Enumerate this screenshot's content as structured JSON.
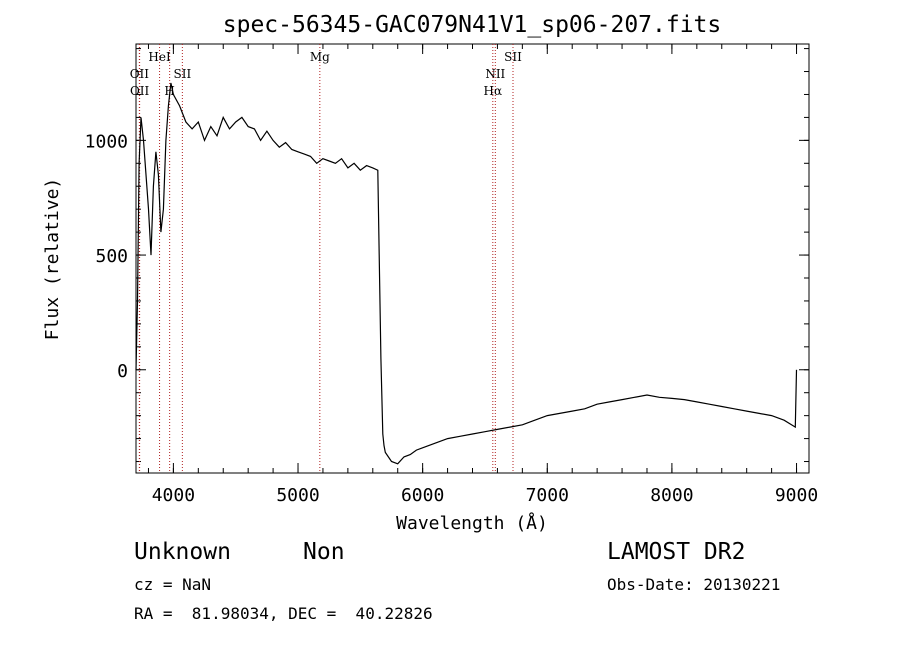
{
  "chart_data": {
    "type": "line",
    "title": "spec-56345-GAC079N41V1_sp06-207.fits",
    "xlabel": "Wavelength (Å)",
    "ylabel": "Flux (relative)",
    "xlim": [
      3700,
      9100
    ],
    "ylim": [
      -450,
      1420
    ],
    "xticks": [
      4000,
      5000,
      6000,
      7000,
      8000,
      9000
    ],
    "yticks": [
      0,
      500,
      1000
    ],
    "grid": false,
    "line_color": "#000000",
    "marker_color": "#b22222",
    "spectral_lines": [
      {
        "label": "OII",
        "wavelength": 3727,
        "row": 2
      },
      {
        "label": "OII",
        "wavelength": 3729,
        "row": 3
      },
      {
        "label": "HeI",
        "wavelength": 3889,
        "row": 1
      },
      {
        "label": "H",
        "wavelength": 3970,
        "row": 3
      },
      {
        "label": "SII",
        "wavelength": 4072,
        "row": 2
      },
      {
        "label": "Mg",
        "wavelength": 5175,
        "row": 1
      },
      {
        "label": "NII",
        "wavelength": 6583,
        "row": 2
      },
      {
        "label": "Hα",
        "wavelength": 6563,
        "row": 3
      },
      {
        "label": "SII",
        "wavelength": 6725,
        "row": 1
      }
    ],
    "series": [
      {
        "x": [
          3700,
          3712,
          3725,
          3740,
          3760,
          3780,
          3800,
          3820,
          3840,
          3860,
          3880,
          3900,
          3920,
          3940,
          3960,
          3980,
          4000,
          4050,
          4100,
          4150,
          4200,
          4250,
          4300,
          4350,
          4400,
          4450,
          4500,
          4550,
          4600,
          4650,
          4700,
          4750,
          4800,
          4850,
          4900,
          4950,
          5000,
          5050,
          5100,
          5150,
          5200,
          5250,
          5300,
          5350,
          5400,
          5450,
          5500,
          5550,
          5600,
          5640,
          5665,
          5680,
          5690,
          5700,
          5750,
          5800,
          5850,
          5900,
          5950,
          6000,
          6100,
          6200,
          6300,
          6400,
          6500,
          6600,
          6700,
          6800,
          6900,
          7000,
          7100,
          7200,
          7300,
          7400,
          7500,
          7600,
          7700,
          7800,
          7900,
          8000,
          8100,
          8200,
          8300,
          8400,
          8500,
          8600,
          8700,
          8800,
          8900,
          8990,
          9000
        ],
        "y": [
          0,
          300,
          900,
          1100,
          1000,
          850,
          700,
          500,
          800,
          950,
          850,
          600,
          700,
          1000,
          1150,
          1250,
          1200,
          1150,
          1080,
          1050,
          1080,
          1000,
          1060,
          1020,
          1100,
          1050,
          1080,
          1100,
          1060,
          1050,
          1000,
          1040,
          1000,
          970,
          990,
          960,
          950,
          940,
          930,
          900,
          920,
          910,
          900,
          920,
          880,
          900,
          870,
          890,
          880,
          870,
          50,
          -280,
          -330,
          -360,
          -400,
          -410,
          -380,
          -370,
          -350,
          -340,
          -320,
          -300,
          -290,
          -280,
          -270,
          -260,
          -250,
          -240,
          -220,
          -200,
          -190,
          -180,
          -170,
          -150,
          -140,
          -130,
          -120,
          -110,
          -120,
          -125,
          -130,
          -140,
          -150,
          -160,
          -170,
          -180,
          -190,
          -200,
          -220,
          -250,
          0
        ]
      }
    ]
  },
  "info": {
    "class": "Unknown",
    "subclass": "Non",
    "cz": "cz = NaN",
    "radec": "RA =  81.98034, DEC =  40.22826",
    "survey": "LAMOST DR2",
    "obsdate": "Obs-Date: 20130221"
  }
}
